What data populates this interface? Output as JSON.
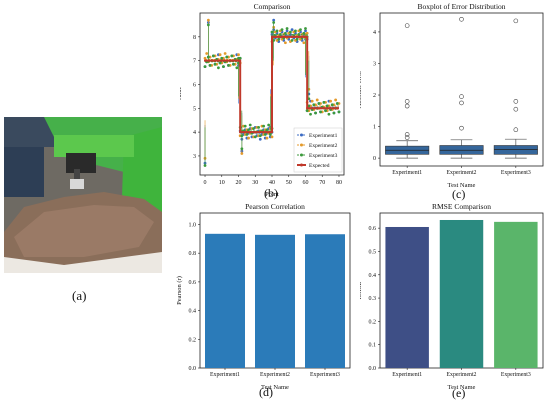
{
  "panel_labels": {
    "a": "(a)",
    "b": "(b)",
    "c": "(c)",
    "d": "(d)",
    "e": "(e)"
  },
  "colors": {
    "experiment1": "#3b6bc4",
    "experiment2": "#e49a2b",
    "experiment3": "#3c9a3c",
    "expected": "#c0392b",
    "box_fill": "#35669b",
    "pearson_bar": "#2b7bb9",
    "rmse1": "#3e4f86",
    "rmse2": "#2a8a80",
    "rmse3": "#5ab56a"
  },
  "chart_data": [
    {
      "type": "line",
      "title": "Comparison",
      "xlabel": "Point",
      "ylabel": "Value",
      "xlim": [
        -3,
        83
      ],
      "ylim": [
        2.2,
        9.0
      ],
      "xticks": [
        "0",
        "10",
        "20",
        "30",
        "40",
        "50",
        "60",
        "70",
        "80"
      ],
      "yticks": [
        "3",
        "4",
        "5",
        "6",
        "7",
        "8"
      ],
      "legend_position": "lower-right",
      "legend": [
        "Experiment1",
        "Experiment2",
        "Experiment3",
        "Expected"
      ],
      "expected": {
        "name": "Expected",
        "segments": [
          {
            "x0": 0,
            "x1": 21,
            "y": 7.0
          },
          {
            "x0": 21,
            "x1": 40,
            "y": 4.0
          },
          {
            "x0": 40,
            "x1": 61,
            "y": 8.0
          },
          {
            "x0": 61,
            "x1": 80,
            "y": 5.0
          }
        ]
      },
      "series": [
        {
          "name": "Experiment1",
          "segments": [
            {
              "x0": 0,
              "x1": 21,
              "y": 7.0
            },
            {
              "x0": 21,
              "x1": 40,
              "y": 3.95
            },
            {
              "x0": 40,
              "x1": 61,
              "y": 8.05
            },
            {
              "x0": 61,
              "x1": 80,
              "y": 5.05
            }
          ],
          "spikes": [
            [
              0,
              2.7
            ],
            [
              2,
              8.6
            ],
            [
              20,
              6.8
            ],
            [
              22,
              3.2
            ],
            [
              39,
              4.2
            ],
            [
              41,
              8.7
            ],
            [
              60,
              7.9
            ],
            [
              62,
              5.6
            ]
          ]
        },
        {
          "name": "Experiment2",
          "segments": [
            {
              "x0": 0,
              "x1": 21,
              "y": 7.05
            },
            {
              "x0": 21,
              "x1": 40,
              "y": 4.0
            },
            {
              "x0": 40,
              "x1": 61,
              "y": 8.0
            },
            {
              "x0": 61,
              "x1": 80,
              "y": 5.1
            }
          ],
          "spikes": [
            [
              0,
              2.9
            ],
            [
              2,
              8.7
            ],
            [
              20,
              7.0
            ],
            [
              22,
              3.1
            ],
            [
              39,
              4.0
            ],
            [
              41,
              8.4
            ],
            [
              60,
              8.1
            ],
            [
              62,
              5.8
            ]
          ]
        },
        {
          "name": "Experiment3",
          "segments": [
            {
              "x0": 0,
              "x1": 21,
              "y": 6.95
            },
            {
              "x0": 21,
              "x1": 40,
              "y": 4.05
            },
            {
              "x0": 40,
              "x1": 61,
              "y": 8.1
            },
            {
              "x0": 61,
              "x1": 80,
              "y": 5.0
            }
          ],
          "spikes": [
            [
              0,
              2.6
            ],
            [
              2,
              8.5
            ],
            [
              20,
              7.1
            ],
            [
              22,
              3.3
            ],
            [
              39,
              3.9
            ],
            [
              41,
              8.6
            ],
            [
              60,
              8.0
            ],
            [
              62,
              5.4
            ]
          ]
        }
      ]
    },
    {
      "type": "box",
      "title": "Boxplot of Error Distribution",
      "xlabel": "Test Name",
      "ylabel": "Absolute error",
      "ylim": [
        -0.25,
        4.6
      ],
      "yticks": [
        "0",
        "1",
        "2",
        "3",
        "4"
      ],
      "categories": [
        "Experiment1",
        "Experiment2",
        "Experiment3"
      ],
      "boxes": [
        {
          "whisker_low": 0.0,
          "q1": 0.12,
          "median": 0.25,
          "q3": 0.38,
          "whisker_high": 0.55,
          "outliers": [
            0.65,
            0.75,
            1.65,
            1.8,
            4.2
          ]
        },
        {
          "whisker_low": 0.0,
          "q1": 0.12,
          "median": 0.25,
          "q3": 0.4,
          "whisker_high": 0.58,
          "outliers": [
            0.95,
            1.75,
            1.95,
            4.4
          ]
        },
        {
          "whisker_low": 0.0,
          "q1": 0.12,
          "median": 0.27,
          "q3": 0.4,
          "whisker_high": 0.6,
          "outliers": [
            0.9,
            1.55,
            1.8,
            4.35
          ]
        }
      ]
    },
    {
      "type": "bar",
      "title": "Pearson Correlation",
      "xlabel": "Test Name",
      "ylabel": "Pearson (r)",
      "ylim": [
        0,
        1.08
      ],
      "yticks": [
        "0.0",
        "0.2",
        "0.4",
        "0.6",
        "0.8",
        "1.0"
      ],
      "categories": [
        "Experiment1",
        "Experiment2",
        "Experiment3"
      ],
      "values": [
        0.935,
        0.928,
        0.932
      ]
    },
    {
      "type": "bar",
      "title": "RMSE Comparison",
      "xlabel": "Test Name",
      "ylabel": "RMSE",
      "ylim": [
        0,
        0.665
      ],
      "yticks": [
        "0.0",
        "0.1",
        "0.2",
        "0.3",
        "0.4",
        "0.5",
        "0.6"
      ],
      "categories": [
        "Experiment1",
        "Experiment2",
        "Experiment3"
      ],
      "values": [
        0.605,
        0.635,
        0.627
      ]
    }
  ]
}
